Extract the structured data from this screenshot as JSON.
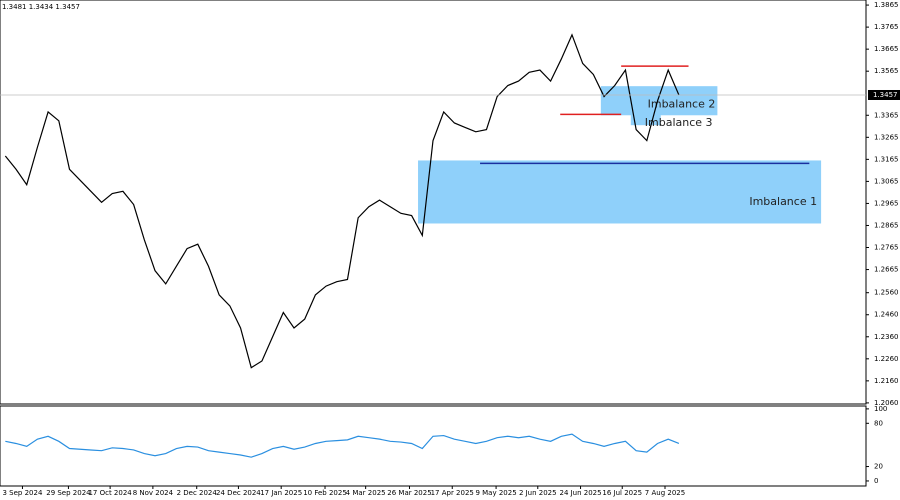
{
  "header": {
    "ohlc_text": "1.3481 1.3434 1.3457"
  },
  "chart_data": [
    {
      "type": "line",
      "color": "#000000",
      "values": [
        1.318,
        1.312,
        1.305,
        1.322,
        1.338,
        1.334,
        1.312,
        1.307,
        1.302,
        1.297,
        1.301,
        1.302,
        1.296,
        1.28,
        1.266,
        1.26,
        1.268,
        1.276,
        1.278,
        1.268,
        1.255,
        1.25,
        1.24,
        1.222,
        1.225,
        1.236,
        1.247,
        1.24,
        1.244,
        1.255,
        1.259,
        1.261,
        1.262,
        1.29,
        1.295,
        1.298,
        1.295,
        1.292,
        1.291,
        1.282,
        1.325,
        1.338,
        1.333,
        1.331,
        1.329,
        1.33,
        1.345,
        1.35,
        1.352,
        1.356,
        1.357,
        1.352,
        1.362,
        1.373,
        1.36,
        1.355,
        1.345,
        1.35,
        1.357,
        1.33,
        1.325,
        1.343,
        1.357,
        1.3457
      ],
      "xlim": [
        -0.5,
        80.5
      ],
      "xticks": [
        {
          "value": 1.6,
          "label": "3 Sep 2024"
        },
        {
          "value": 5.9,
          "label": "29 Sep 2024"
        },
        {
          "value": 9.8,
          "label": "17 Oct 2024"
        },
        {
          "value": 13.8,
          "label": "8 Nov 2024"
        },
        {
          "value": 17.9,
          "label": "2 Dec 2024"
        },
        {
          "value": 21.8,
          "label": "24 Dec 2024"
        },
        {
          "value": 25.8,
          "label": "17 Jan 2025"
        },
        {
          "value": 29.9,
          "label": "10 Feb 2025"
        },
        {
          "value": 33.7,
          "label": "4 Mar 2025"
        },
        {
          "value": 37.8,
          "label": "26 Mar 2025"
        },
        {
          "value": 41.8,
          "label": "17 Apr 2025"
        },
        {
          "value": 45.9,
          "label": "9 May 2025"
        },
        {
          "value": 49.8,
          "label": "2 Jun 2025"
        },
        {
          "value": 53.8,
          "label": "24 Jun 2025"
        },
        {
          "value": 57.7,
          "label": "16 Jul 2025"
        },
        {
          "value": 61.7,
          "label": "7 Aug 2025"
        }
      ],
      "ylim": [
        1.2055,
        1.3888
      ],
      "yticks": [
        1.3865,
        1.3765,
        1.3665,
        1.3565,
        1.3365,
        1.3265,
        1.3165,
        1.3065,
        1.2965,
        1.2865,
        1.2765,
        1.2665,
        {
          "value": 1.256,
          "label": "1.2560"
        },
        {
          "value": 1.246,
          "label": "1.2460"
        },
        {
          "value": 1.236,
          "label": "1.2360"
        },
        {
          "value": 1.226,
          "label": "1.2260"
        },
        {
          "value": 1.216,
          "label": "1.2160"
        },
        {
          "value": 1.206,
          "label": "1.2060"
        }
      ],
      "last_price": 1.3457,
      "zones": [
        {
          "label": "Imbalance 1",
          "x": [
            38.6,
            76.3
          ],
          "y": [
            1.2874,
            1.316
          ],
          "color": "#8fd0fa"
        },
        {
          "label": "Imbalance 2",
          "x": [
            55.7,
            66.6
          ],
          "y": [
            1.3365,
            1.3497
          ],
          "color": "#8fd0fa"
        },
        {
          "label": "Imbalance 3",
          "x": [
            58.5,
            61.3
          ],
          "y": [
            1.332,
            1.3456
          ],
          "color": "#8fd0fa"
        }
      ],
      "levels": [
        {
          "x": [
            57.6,
            63.9
          ],
          "y": 1.3588,
          "color": "#e02020"
        },
        {
          "x": [
            51.9,
            57.6
          ],
          "y": 1.3369,
          "color": "#e02020"
        },
        {
          "x": [
            44.4,
            75.2
          ],
          "y": 1.3147,
          "color": "#1a2fa0"
        }
      ]
    },
    {
      "type": "line",
      "color": "#2a8fe0",
      "values": [
        55,
        52,
        48,
        58,
        62,
        55,
        45,
        44,
        43,
        42,
        46,
        45,
        43,
        38,
        35,
        38,
        45,
        48,
        47,
        42,
        40,
        38,
        36,
        33,
        38,
        45,
        48,
        44,
        47,
        52,
        55,
        56,
        57,
        62,
        60,
        58,
        55,
        54,
        52,
        45,
        62,
        63,
        58,
        55,
        52,
        55,
        60,
        62,
        60,
        62,
        58,
        55,
        62,
        65,
        55,
        52,
        48,
        52,
        55,
        42,
        40,
        52,
        58,
        52
      ],
      "ylim": [
        -7,
        104
      ],
      "yticks": [
        0,
        20,
        80,
        100
      ]
    }
  ]
}
